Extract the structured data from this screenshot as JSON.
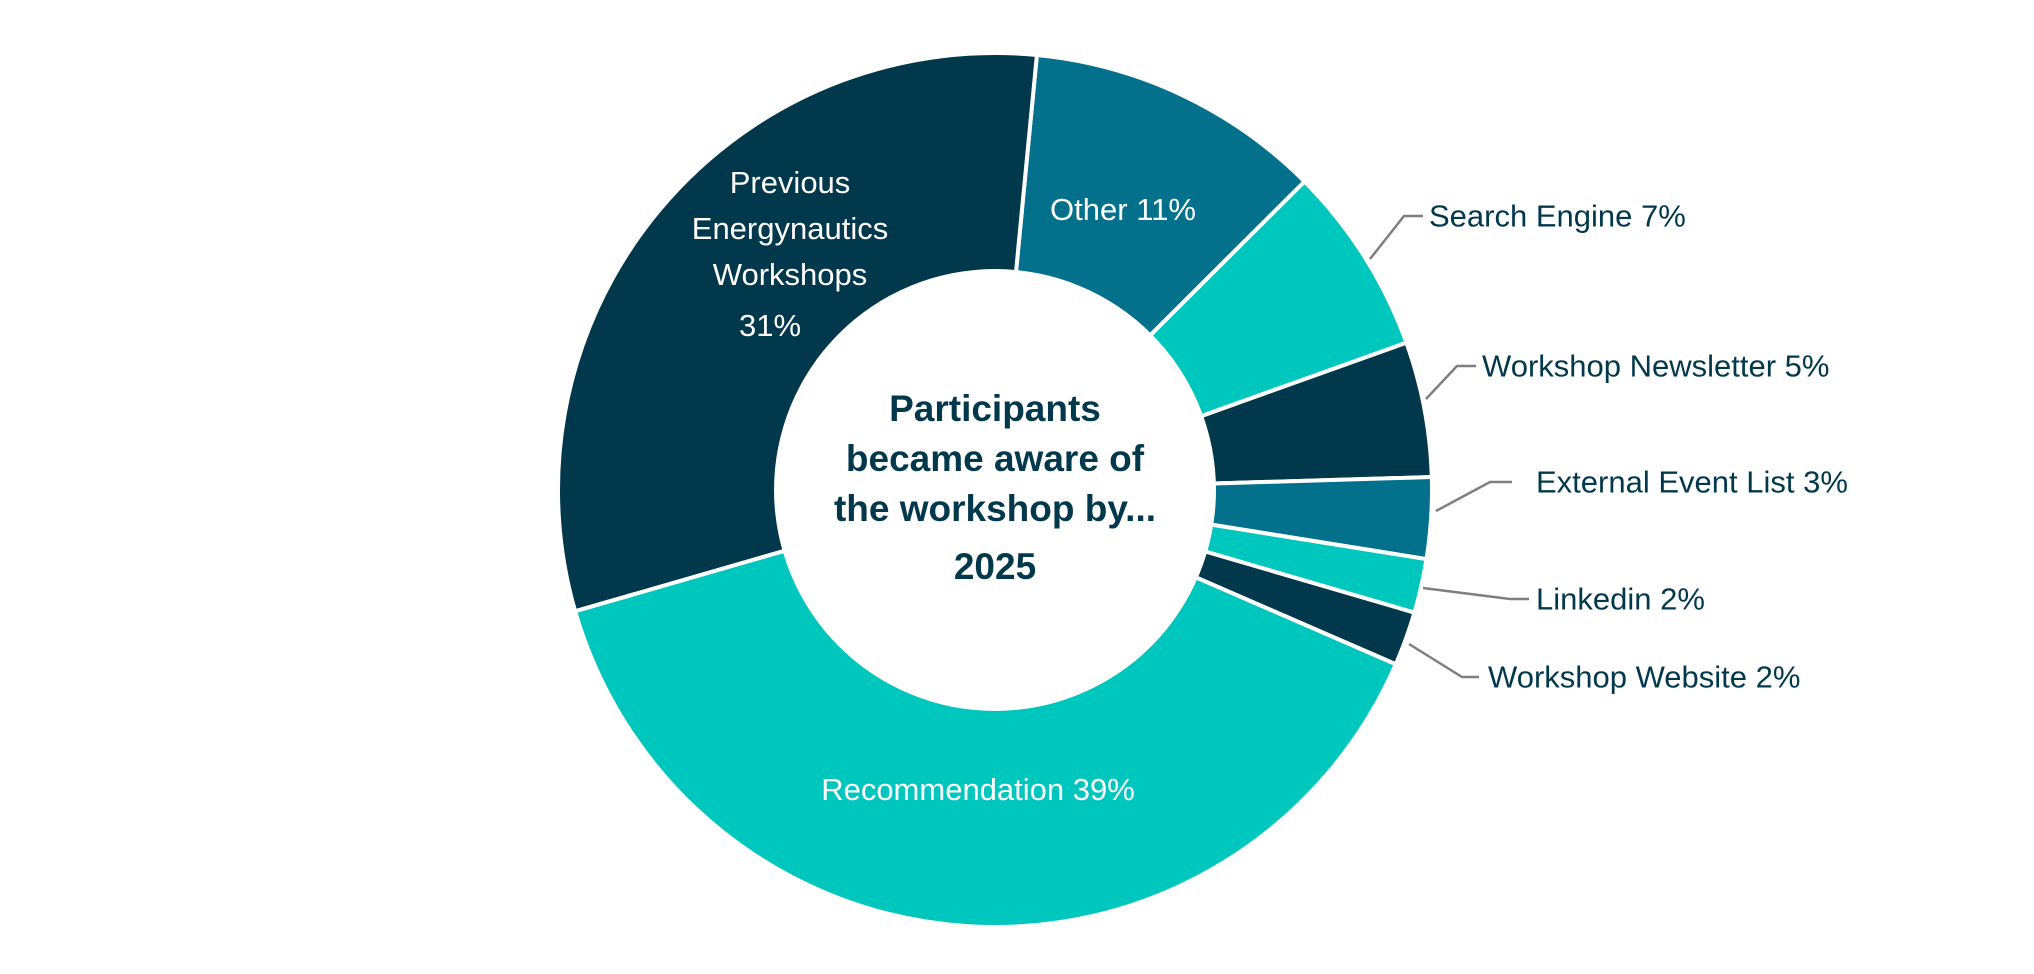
{
  "chart_data": {
    "type": "pie",
    "variant": "donut",
    "title": [
      "Participants",
      "became aware of",
      "the workshop by...",
      "2025"
    ],
    "slices": [
      {
        "label": "Other",
        "value": 11,
        "display": "Other 11%",
        "color": "#03708C"
      },
      {
        "label": "Search Engine",
        "value": 7,
        "display": "Search Engine 7%",
        "color": "#00C7BE"
      },
      {
        "label": "Workshop Newsletter",
        "value": 5,
        "display": "Workshop Newsletter 5%",
        "color": "#02384B"
      },
      {
        "label": "External Event List",
        "value": 3,
        "display": "External Event List 3%",
        "color": "#03708C"
      },
      {
        "label": "Linkedin",
        "value": 2,
        "display": "Linkedin 2%",
        "color": "#00C7BE"
      },
      {
        "label": "Workshop Website",
        "value": 2,
        "display": "Workshop Website 2%",
        "color": "#02384B"
      },
      {
        "label": "Recommendation",
        "value": 39,
        "display": "Recommendation 39%",
        "color": "#00C7BE"
      },
      {
        "label": "Previous Energynautics Workshops",
        "value": 31,
        "display_lines": [
          "Previous",
          "Energynautics",
          "Workshops",
          "31%"
        ],
        "color": "#02384B"
      }
    ],
    "legend": "none",
    "labels": "data labels with leader lines for small slices"
  }
}
